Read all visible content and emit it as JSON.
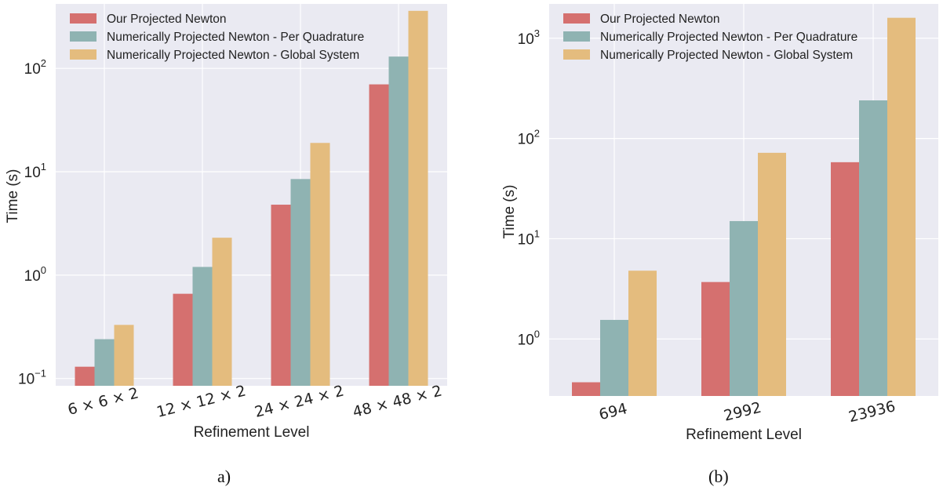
{
  "colors": {
    "plot_bg": "#eaeaf2",
    "grid": "#ffffff",
    "series": [
      "#d5706f",
      "#8fb3b2",
      "#e4bc7e"
    ],
    "text": "#222222"
  },
  "chart_data": [
    {
      "type": "bar",
      "caption": "a)",
      "xlabel": "Refinement Level",
      "ylabel": "Time (s)",
      "yscale": "log",
      "ylim": [
        0.085,
        420
      ],
      "yticks": [
        {
          "value": 0.1,
          "label": "10"
        },
        {
          "value": 1,
          "label": "10"
        },
        {
          "value": 10,
          "label": "10"
        },
        {
          "value": 100,
          "label": "10"
        }
      ],
      "ytick_exponents": [
        "−1",
        "0",
        "1",
        "2"
      ],
      "categories": [
        "6 × 6 × 2",
        "12 × 12 × 2",
        "24 × 24 × 2",
        "48 × 48 × 2"
      ],
      "legend_position": "top-left",
      "grid": true,
      "series": [
        {
          "name": "Our Projected Newton",
          "values": [
            0.13,
            0.66,
            4.8,
            70
          ]
        },
        {
          "name": "Numerically Projected Newton - Per Quadrature",
          "values": [
            0.24,
            1.2,
            8.5,
            130
          ]
        },
        {
          "name": "Numerically Projected Newton - Global System",
          "values": [
            0.33,
            2.3,
            19,
            360
          ]
        }
      ]
    },
    {
      "type": "bar",
      "caption": "(b)",
      "xlabel": "Refinement Level",
      "ylabel": "Time (s)",
      "yscale": "log",
      "ylim": [
        0.27,
        2200
      ],
      "yticks": [
        {
          "value": 1,
          "label": "10"
        },
        {
          "value": 10,
          "label": "10"
        },
        {
          "value": 100,
          "label": "10"
        },
        {
          "value": 1000,
          "label": "10"
        }
      ],
      "ytick_exponents": [
        "0",
        "1",
        "2",
        "3"
      ],
      "categories": [
        "694",
        "2992",
        "23936"
      ],
      "legend_position": "top-left",
      "grid": true,
      "series": [
        {
          "name": "Our Projected Newton",
          "values": [
            0.37,
            3.7,
            58
          ]
        },
        {
          "name": "Numerically Projected Newton - Per Quadrature",
          "values": [
            1.55,
            15,
            240
          ]
        },
        {
          "name": "Numerically Projected Newton - Global System",
          "values": [
            4.8,
            72,
            1600
          ]
        }
      ]
    }
  ]
}
